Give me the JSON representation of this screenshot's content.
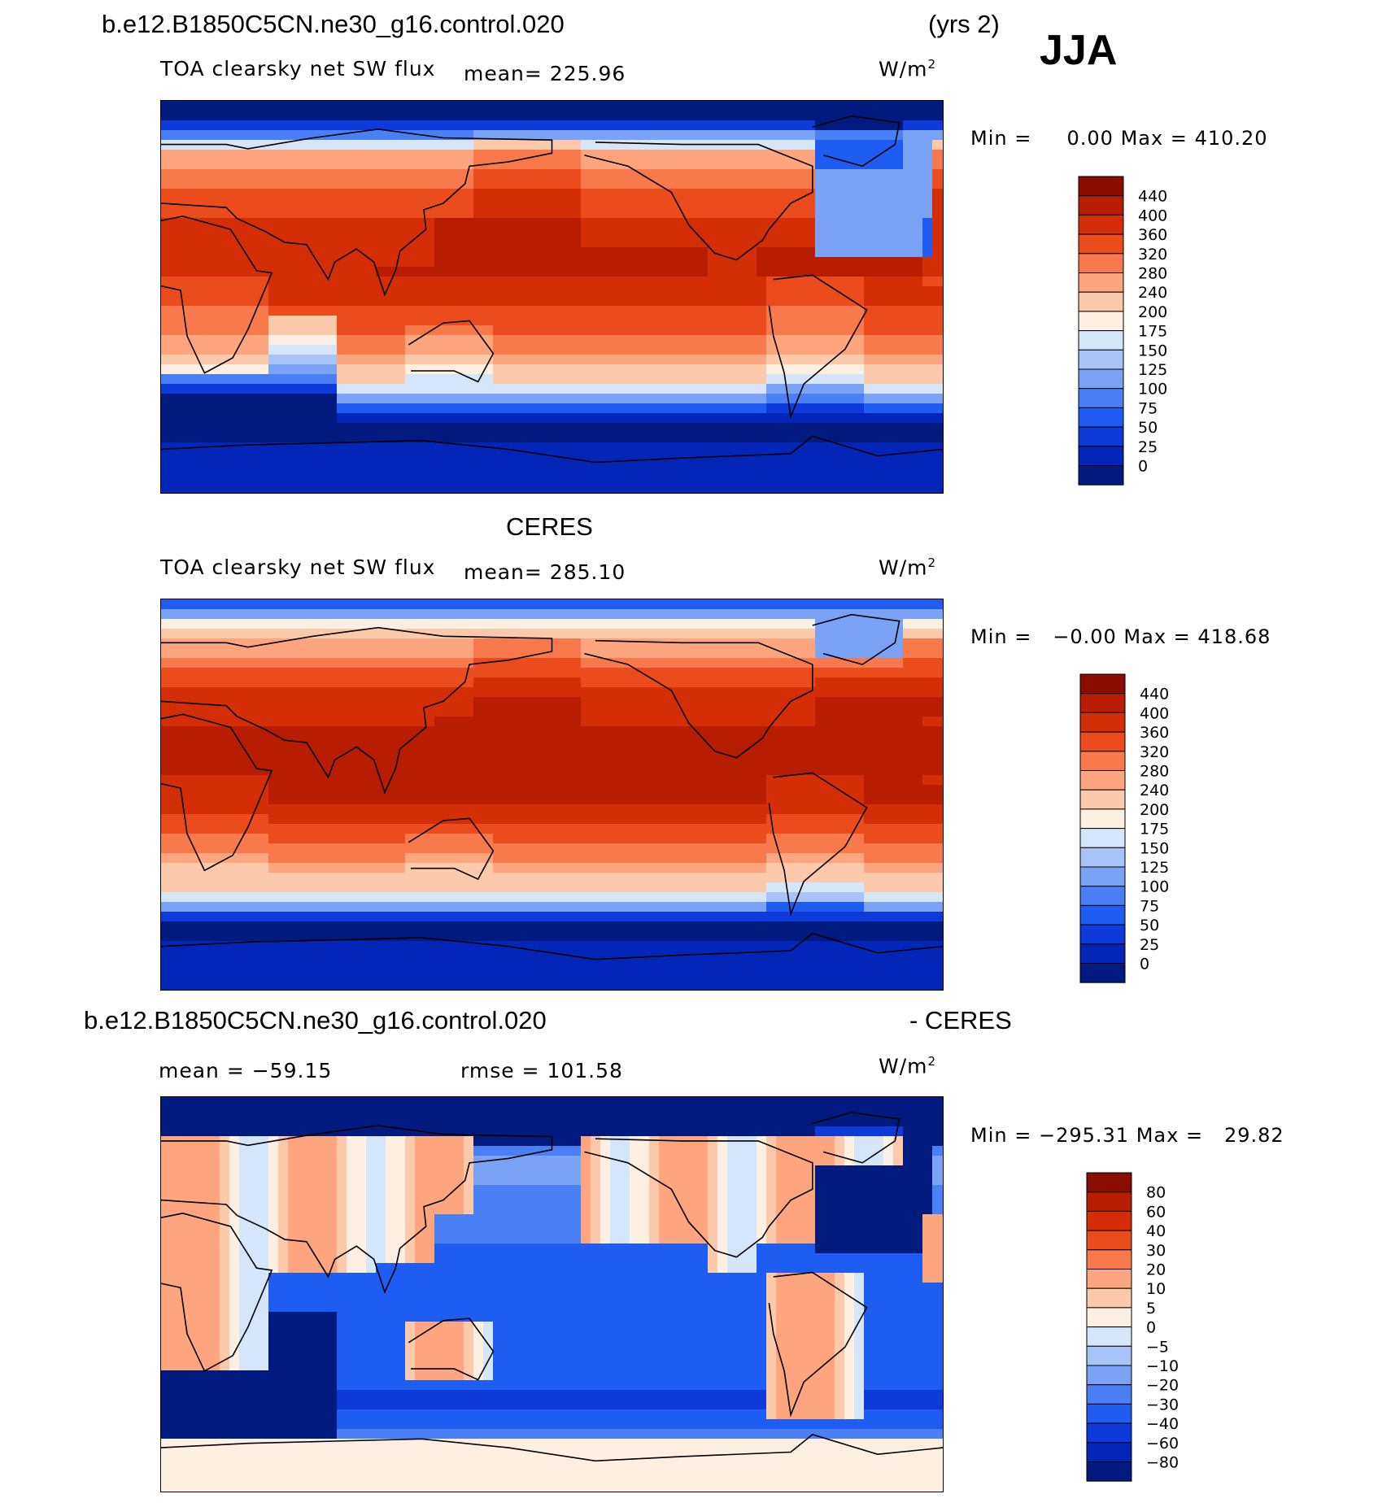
{
  "season": "JJA",
  "colors": {
    "flux_scale": [
      "#001a80",
      "#0326b8",
      "#0d3ad9",
      "#1f5cf2",
      "#4a7ff5",
      "#7aa3f5",
      "#a7c3f7",
      "#d5e6fb",
      "#fdf0e2",
      "#fcc9aa",
      "#fca57f",
      "#f87a4c",
      "#ea4c1c",
      "#d42e06",
      "#b71d00",
      "#8a0d00"
    ],
    "diff_scale": [
      "#001a80",
      "#0326b8",
      "#0d3ad9",
      "#1f5cf2",
      "#4a7ff5",
      "#7aa3f5",
      "#a7c3f7",
      "#d5e6fb",
      "#fdf0e2",
      "#fcc9aa",
      "#fca57f",
      "#f87a4c",
      "#ea4c1c",
      "#d42e06",
      "#b71d00",
      "#8a0d00"
    ]
  },
  "panels": [
    {
      "id": "model",
      "case_title": "b.e12.B1850C5CN.ne30_g16.control.020",
      "years": "(yrs 2)",
      "variable": "TOA clearsky net SW flux",
      "mean_text": "mean= 225.96",
      "units": "W/m",
      "units_sup": "2",
      "min_label": "Min =",
      "min_value": "0.00",
      "max_label": "Max =",
      "max_value": "410.20",
      "levels": [
        "440",
        "400",
        "360",
        "320",
        "280",
        "240",
        "200",
        "175",
        "150",
        "125",
        "100",
        "75",
        "50",
        "25",
        "0"
      ],
      "fill_kind": "model"
    },
    {
      "id": "obs",
      "case_title": "CERES",
      "variable": "TOA clearsky net SW flux",
      "mean_text": "mean= 285.10",
      "units": "W/m",
      "units_sup": "2",
      "min_label": "Min =",
      "min_value": "−0.00",
      "max_label": "Max =",
      "max_value": "418.68",
      "levels": [
        "440",
        "400",
        "360",
        "320",
        "280",
        "240",
        "200",
        "175",
        "150",
        "125",
        "100",
        "75",
        "50",
        "25",
        "0"
      ],
      "fill_kind": "obs"
    },
    {
      "id": "diff",
      "case_title": "b.e12.B1850C5CN.ne30_g16.control.020",
      "case_suffix": "- CERES",
      "mean_text": "mean = −59.15",
      "rmse_text": "rmse = 101.58",
      "units": "W/m",
      "units_sup": "2",
      "min_label": "Min =",
      "min_value": "−295.31",
      "max_label": "Max =",
      "max_value": "29.82",
      "levels": [
        "80",
        "60",
        "40",
        "30",
        "20",
        "10",
        "5",
        "0",
        "−5",
        "−10",
        "−20",
        "−30",
        "−40",
        "−60",
        "−80"
      ],
      "fill_kind": "diff"
    }
  ]
}
